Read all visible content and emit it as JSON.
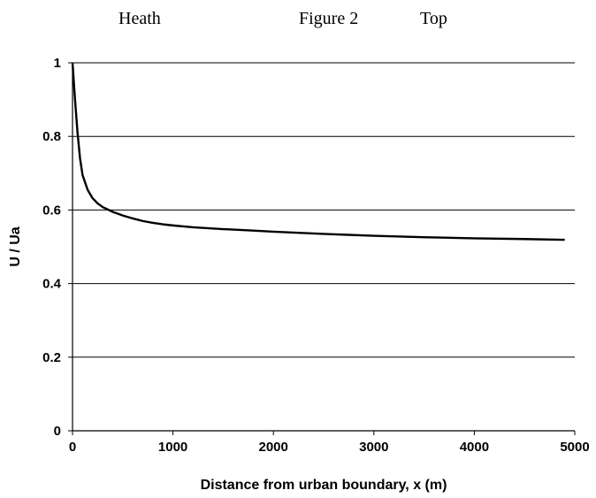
{
  "header": {
    "left": "Heath",
    "center": "Figure 2",
    "right": "Top"
  },
  "chart_data": {
    "type": "line",
    "title": "",
    "xlabel": "Distance from urban boundary, x (m)",
    "ylabel": "U / Ua",
    "xlim": [
      0,
      5000
    ],
    "ylim": [
      0,
      1
    ],
    "xticks": [
      0,
      1000,
      2000,
      3000,
      4000,
      5000
    ],
    "yticks": [
      0,
      0.2,
      0.4,
      0.6,
      0.8,
      1
    ],
    "ytick_labels": [
      "0",
      "0.2",
      "0.4",
      "0.6",
      "0.8",
      "1"
    ],
    "grid": "horizontal",
    "legend": "none",
    "series": [
      {
        "color": "#000000",
        "x": [
          0,
          25,
          50,
          75,
          100,
          150,
          200,
          250,
          300,
          400,
          500,
          600,
          700,
          800,
          900,
          1000,
          1200,
          1500,
          1800,
          2000,
          2500,
          3000,
          3500,
          4000,
          4500,
          4900
        ],
        "y": [
          1.0,
          0.9,
          0.81,
          0.74,
          0.695,
          0.655,
          0.632,
          0.618,
          0.608,
          0.595,
          0.585,
          0.577,
          0.57,
          0.565,
          0.561,
          0.558,
          0.553,
          0.548,
          0.544,
          0.541,
          0.535,
          0.53,
          0.526,
          0.523,
          0.521,
          0.519
        ]
      }
    ]
  }
}
